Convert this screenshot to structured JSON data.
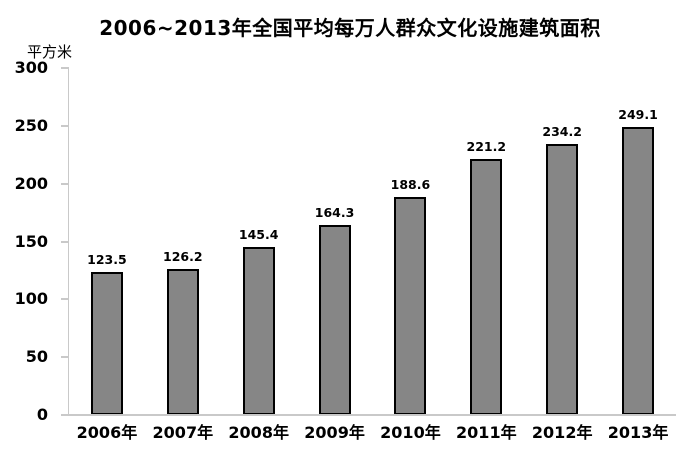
{
  "chart_data": {
    "type": "bar",
    "title": "2006~2013年全国平均每万人群众文化设施建筑面积",
    "y_unit_label": "平方米",
    "categories": [
      "2006年",
      "2007年",
      "2008年",
      "2009年",
      "2010年",
      "2011年",
      "2012年",
      "2013年"
    ],
    "values": [
      123.5,
      126.2,
      145.4,
      164.3,
      188.6,
      221.2,
      234.2,
      249.1
    ],
    "data_labels": [
      "123.5",
      "126.2",
      "145.4",
      "164.3",
      "188.6",
      "221.2",
      "234.2",
      "249.1"
    ],
    "xlabel": "",
    "ylabel": "平方米",
    "ylim": [
      0,
      300
    ],
    "yticks": [
      300,
      250,
      200,
      150,
      100,
      50,
      0
    ],
    "grid": false,
    "legend": "none",
    "colors": {
      "bar_fill": "#868686",
      "bar_border": "#000000",
      "axis_line": "#c9c9c9",
      "text": "#000000",
      "background": "#ffffff"
    }
  }
}
